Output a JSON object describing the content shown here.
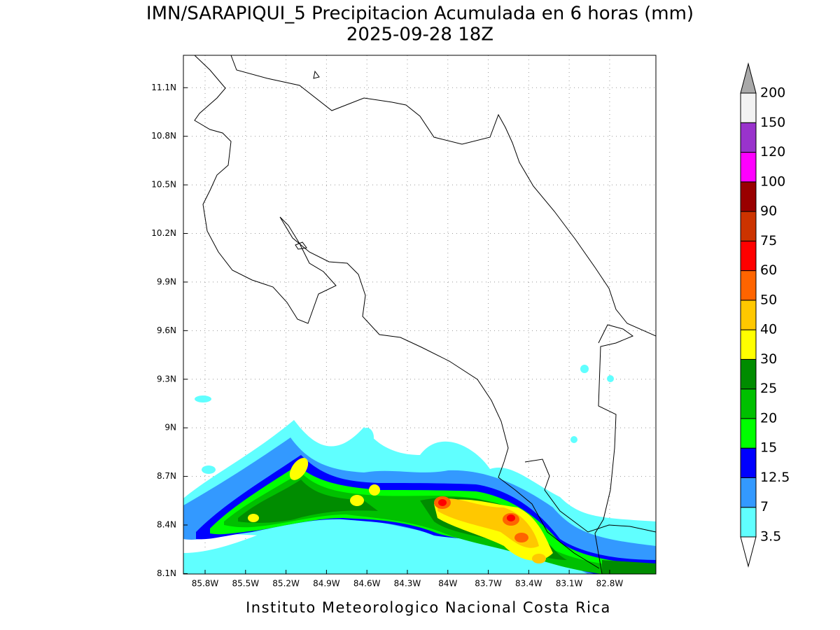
{
  "title": "IMN/SARAPIQUI_5 Precipitacion Acumulada en 6 horas (mm)",
  "subtitle": "2025-09-28 18Z",
  "footer": "Instituto Meteorologico Nacional Costa Rica",
  "map": {
    "lon_range": [
      -85.961,
      -82.457
    ],
    "lat_range": [
      8.0975,
      11.3
    ],
    "lon_ticks": [
      {
        "value": -85.8,
        "label": "85.8W"
      },
      {
        "value": -85.5,
        "label": "85.5W"
      },
      {
        "value": -85.2,
        "label": "85.2W"
      },
      {
        "value": -84.9,
        "label": "84.9W"
      },
      {
        "value": -84.6,
        "label": "84.6W"
      },
      {
        "value": -84.3,
        "label": "84.3W"
      },
      {
        "value": -84.0,
        "label": "84W"
      },
      {
        "value": -83.7,
        "label": "83.7W"
      },
      {
        "value": -83.4,
        "label": "83.4W"
      },
      {
        "value": -83.1,
        "label": "83.1W"
      },
      {
        "value": -82.8,
        "label": "82.8W"
      }
    ],
    "lat_ticks": [
      {
        "value": 8.1,
        "label": "8.1N"
      },
      {
        "value": 8.4,
        "label": "8.4N"
      },
      {
        "value": 8.7,
        "label": "8.7N"
      },
      {
        "value": 9.0,
        "label": "9N"
      },
      {
        "value": 9.3,
        "label": "9.3N"
      },
      {
        "value": 9.6,
        "label": "9.6N"
      },
      {
        "value": 9.9,
        "label": "9.9N"
      },
      {
        "value": 10.2,
        "label": "10.2N"
      },
      {
        "value": 10.5,
        "label": "10.5N"
      },
      {
        "value": 10.8,
        "label": "10.8N"
      },
      {
        "value": 11.1,
        "label": "11.1N"
      }
    ],
    "grid": true
  },
  "colorbar": {
    "levels": [
      3.5,
      7,
      12.5,
      15,
      20,
      25,
      30,
      40,
      50,
      60,
      75,
      90,
      100,
      120,
      150,
      200
    ],
    "colors": [
      "#60ffff",
      "#3399ff",
      "#0000ff",
      "#00ff00",
      "#00c000",
      "#008c00",
      "#ffff00",
      "#ffc800",
      "#ff6400",
      "#ff0000",
      "#cc3300",
      "#990000",
      "#ff00ff",
      "#9933cc",
      "#f2f2f2"
    ],
    "under_color": "#ffffff",
    "over_color": "#a9a9a9"
  }
}
